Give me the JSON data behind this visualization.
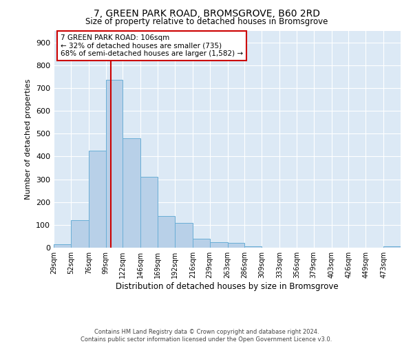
{
  "title": "7, GREEN PARK ROAD, BROMSGROVE, B60 2RD",
  "subtitle": "Size of property relative to detached houses in Bromsgrove",
  "xlabel": "Distribution of detached houses by size in Bromsgrove",
  "ylabel": "Number of detached properties",
  "footer_line1": "Contains HM Land Registry data © Crown copyright and database right 2024.",
  "footer_line2": "Contains public sector information licensed under the Open Government Licence v3.0.",
  "annotation_line1": "7 GREEN PARK ROAD: 106sqm",
  "annotation_line2": "← 32% of detached houses are smaller (735)",
  "annotation_line3": "68% of semi-detached houses are larger (1,582) →",
  "property_size": 106,
  "bar_edges": [
    29,
    52,
    76,
    99,
    122,
    146,
    169,
    192,
    216,
    239,
    263,
    286,
    309,
    333,
    356,
    379,
    403,
    426,
    449,
    473,
    496
  ],
  "bar_heights": [
    15,
    120,
    425,
    735,
    480,
    310,
    140,
    110,
    40,
    25,
    20,
    5,
    0,
    0,
    0,
    0,
    0,
    0,
    0,
    5
  ],
  "bar_color": "#b8d0e8",
  "bar_edge_color": "#6aaed6",
  "line_color": "#cc0000",
  "annotation_box_color": "#cc0000",
  "plot_bg_color": "#dce9f5",
  "ylim": [
    0,
    950
  ],
  "yticks": [
    0,
    100,
    200,
    300,
    400,
    500,
    600,
    700,
    800,
    900
  ]
}
